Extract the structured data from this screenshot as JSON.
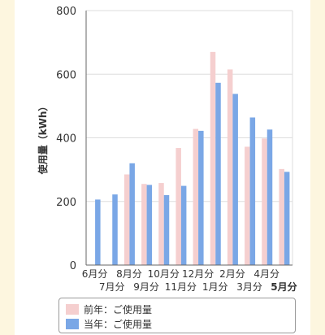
{
  "chart_data": {
    "type": "bar",
    "ylabel": "使用量（kWh）",
    "ylim": [
      0,
      800
    ],
    "yticks": [
      "0",
      "200",
      "400",
      "600",
      "800"
    ],
    "categories": [
      "6月分",
      "7月分",
      "8月分",
      "9月分",
      "10月分",
      "11月分",
      "12月分",
      "1月分",
      "2月分",
      "3月分",
      "4月分",
      "5月分"
    ],
    "highlight_category": "5月分",
    "grid": true,
    "legend_position": "bottom",
    "series": [
      {
        "name": "前年：ご使用量",
        "color": "#f5cfcf",
        "values": [
          0,
          0,
          285,
          255,
          258,
          368,
          428,
          670,
          615,
          372,
          398,
          302
        ]
      },
      {
        "name": "当年：ご使用量",
        "color": "#7aa7e6",
        "values": [
          206,
          222,
          320,
          252,
          220,
          249,
          422,
          573,
          538,
          464,
          426,
          293
        ]
      }
    ]
  }
}
